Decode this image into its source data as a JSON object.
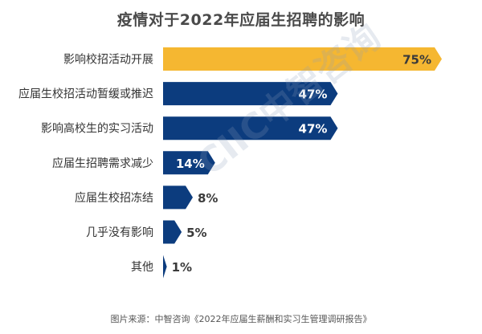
{
  "chart_data": {
    "type": "bar",
    "orientation": "horizontal",
    "title": "疫情对于2022年应届生招聘的影响",
    "categories": [
      "影响校招活动开展",
      "应届生校招活动暂缓或推迟",
      "影响高校生的实习活动",
      "应届生招聘需求减少",
      "应届生校招冻结",
      "几乎没有影响",
      "其他"
    ],
    "values": [
      75,
      47,
      47,
      14,
      8,
      5,
      1
    ],
    "value_labels": [
      "75%",
      "47%",
      "47%",
      "14%",
      "8%",
      "5%",
      "1%"
    ],
    "highlight_index": 0,
    "xlim": [
      0,
      100
    ],
    "grid": false
  },
  "colors": {
    "highlight": "#F5B731",
    "bar": "#0C3C7E",
    "label_text": "#333333",
    "value_on_bar": "#ffffff",
    "value_outside": "#3a3a3a"
  },
  "watermark": "CIIC中智咨询",
  "source": "图片来源：中智咨询《2022年应届生薪酬和实习生管理调研报告》"
}
